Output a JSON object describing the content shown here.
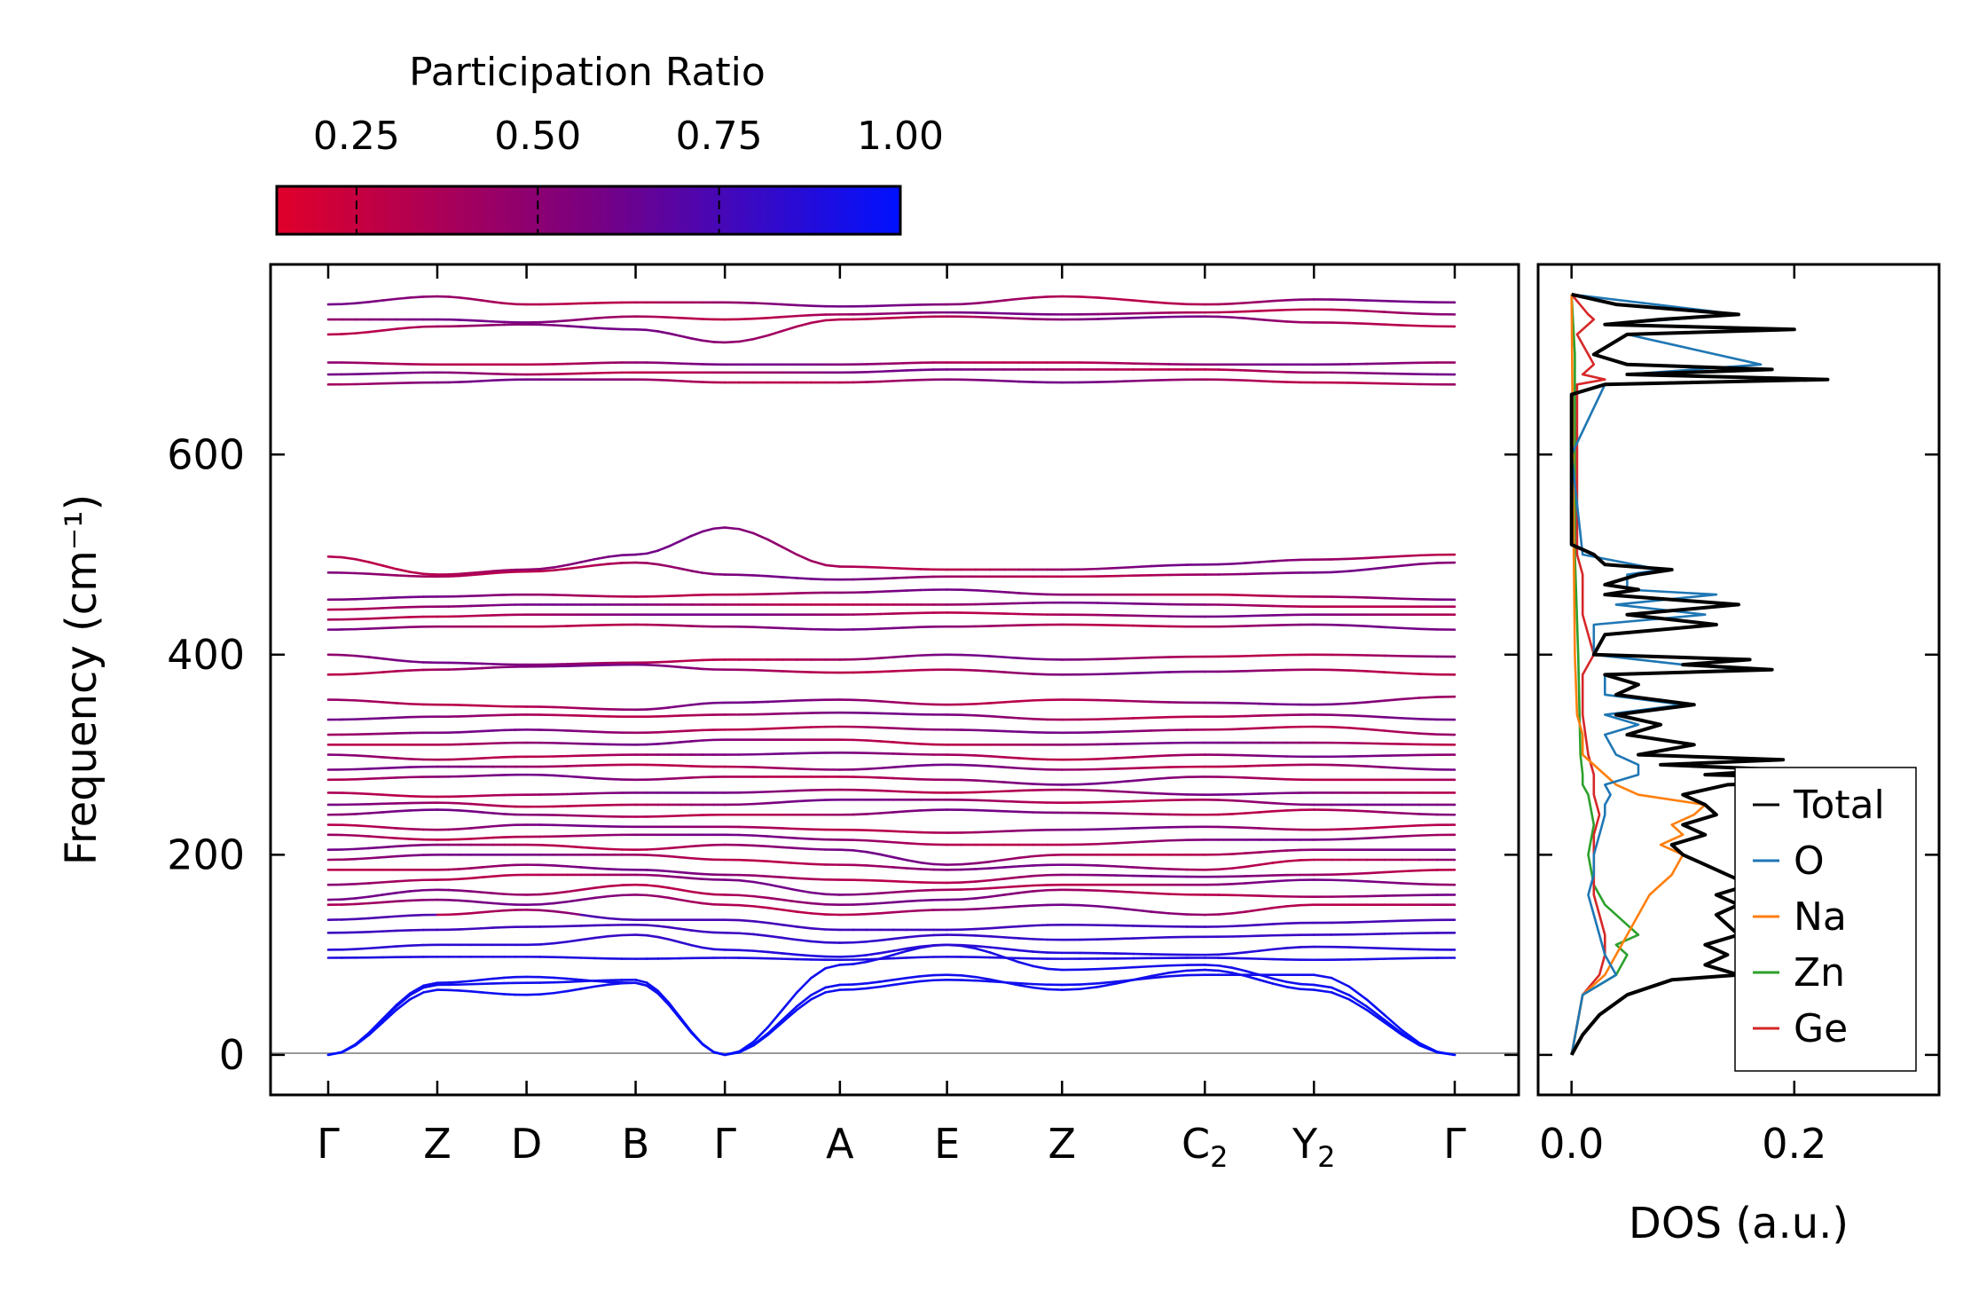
{
  "chart_data": {
    "type": "line",
    "colorbar": {
      "label": "Participation Ratio",
      "ticks": [
        "0.25",
        "0.50",
        "0.75",
        "1.00"
      ],
      "tick_values": [
        0.25,
        0.5,
        0.75,
        1.0
      ],
      "range": [
        0.14,
        1.0
      ],
      "color_low": "#e0002a",
      "color_mid": "#7a0080",
      "color_high": "#0011ff"
    },
    "band_plot": {
      "ylabel": "Frequency (cm⁻¹)",
      "ylim": [
        -40,
        790
      ],
      "yticks": [
        0,
        200,
        400,
        600
      ],
      "ytick_labels": [
        "0",
        "200",
        "400",
        "600"
      ],
      "kpoints": [
        "Γ",
        "Z",
        "D",
        "B",
        "Γ",
        "A",
        "E",
        "Z",
        "C₂",
        "Y₂",
        "Γ"
      ],
      "kpoint_positions": [
        0,
        0.55,
        1.0,
        1.55,
        2.0,
        2.58,
        3.12,
        3.7,
        4.42,
        4.97,
        5.68
      ],
      "segment_break_at": 2.0,
      "bands": [
        {
          "kind": "acoustic",
          "values": [
            0,
            70,
            72,
            75,
            0,
            90,
            110,
            85,
            90,
            70,
            0
          ]
        },
        {
          "kind": "acoustic",
          "values": [
            0,
            72,
            78,
            72,
            0,
            70,
            80,
            65,
            85,
            65,
            0
          ]
        },
        {
          "kind": "acoustic",
          "values": [
            0,
            65,
            60,
            72,
            0,
            65,
            75,
            70,
            80,
            80,
            0
          ]
        },
        {
          "kind": "optical",
          "values": [
            97,
            98,
            98,
            96,
            97,
            95,
            98,
            96,
            97,
            95,
            97
          ]
        },
        {
          "kind": "optical",
          "values": [
            105,
            110,
            110,
            120,
            105,
            98,
            110,
            102,
            100,
            108,
            105
          ]
        },
        {
          "kind": "optical",
          "values": [
            122,
            125,
            128,
            130,
            122,
            112,
            120,
            115,
            118,
            120,
            122
          ]
        },
        {
          "kind": "optical",
          "values": [
            135,
            140,
            145,
            135,
            135,
            125,
            125,
            130,
            128,
            132,
            135
          ]
        },
        {
          "kind": "optical",
          "values": [
            150,
            155,
            150,
            160,
            150,
            140,
            145,
            150,
            140,
            150,
            150
          ]
        },
        {
          "kind": "optical",
          "values": [
            155,
            165,
            160,
            170,
            160,
            150,
            155,
            165,
            160,
            158,
            160
          ]
        },
        {
          "kind": "optical",
          "values": [
            170,
            175,
            180,
            180,
            175,
            160,
            165,
            170,
            170,
            175,
            170
          ]
        },
        {
          "kind": "optical",
          "values": [
            185,
            185,
            190,
            185,
            180,
            175,
            172,
            180,
            178,
            180,
            185
          ]
        },
        {
          "kind": "optical",
          "values": [
            195,
            200,
            200,
            200,
            195,
            190,
            185,
            190,
            185,
            195,
            195
          ]
        },
        {
          "kind": "optical",
          "values": [
            205,
            210,
            210,
            205,
            210,
            205,
            190,
            200,
            200,
            205,
            205
          ]
        },
        {
          "kind": "optical",
          "values": [
            220,
            215,
            218,
            220,
            220,
            215,
            210,
            210,
            215,
            215,
            220
          ]
        },
        {
          "kind": "optical",
          "values": [
            230,
            225,
            230,
            228,
            228,
            225,
            222,
            225,
            228,
            225,
            230
          ]
        },
        {
          "kind": "optical",
          "values": [
            240,
            245,
            240,
            238,
            240,
            240,
            245,
            242,
            240,
            245,
            240
          ]
        },
        {
          "kind": "optical",
          "values": [
            250,
            252,
            248,
            250,
            250,
            255,
            255,
            252,
            255,
            250,
            250
          ]
        },
        {
          "kind": "optical",
          "values": [
            262,
            258,
            260,
            262,
            262,
            265,
            262,
            265,
            260,
            262,
            262
          ]
        },
        {
          "kind": "optical",
          "values": [
            275,
            278,
            280,
            275,
            278,
            278,
            275,
            270,
            278,
            275,
            275
          ]
        },
        {
          "kind": "optical",
          "values": [
            285,
            288,
            288,
            290,
            288,
            285,
            290,
            285,
            288,
            290,
            285
          ]
        },
        {
          "kind": "optical",
          "values": [
            300,
            295,
            298,
            300,
            300,
            302,
            300,
            295,
            300,
            298,
            300
          ]
        },
        {
          "kind": "optical",
          "values": [
            310,
            310,
            312,
            310,
            315,
            315,
            310,
            310,
            312,
            312,
            310
          ]
        },
        {
          "kind": "optical",
          "values": [
            320,
            322,
            325,
            322,
            325,
            328,
            325,
            322,
            325,
            328,
            320
          ]
        },
        {
          "kind": "optical",
          "values": [
            335,
            338,
            340,
            338,
            340,
            342,
            340,
            335,
            338,
            340,
            335
          ]
        },
        {
          "kind": "optical",
          "values": [
            355,
            350,
            348,
            345,
            352,
            355,
            350,
            355,
            352,
            350,
            358
          ]
        },
        {
          "kind": "optical",
          "values": [
            380,
            385,
            388,
            390,
            385,
            382,
            385,
            380,
            383,
            385,
            380
          ]
        },
        {
          "kind": "optical",
          "values": [
            400,
            392,
            390,
            392,
            395,
            395,
            400,
            395,
            398,
            400,
            398
          ]
        },
        {
          "kind": "optical",
          "values": [
            425,
            428,
            428,
            430,
            428,
            425,
            428,
            430,
            428,
            430,
            425
          ]
        },
        {
          "kind": "optical",
          "values": [
            435,
            438,
            440,
            440,
            440,
            440,
            442,
            440,
            438,
            440,
            440
          ]
        },
        {
          "kind": "optical",
          "values": [
            445,
            448,
            450,
            450,
            450,
            450,
            450,
            452,
            450,
            448,
            448
          ]
        },
        {
          "kind": "optical",
          "values": [
            455,
            458,
            460,
            458,
            460,
            462,
            465,
            460,
            460,
            458,
            455
          ]
        },
        {
          "kind": "optical",
          "values": [
            482,
            478,
            483,
            492,
            480,
            475,
            478,
            478,
            480,
            482,
            492
          ]
        },
        {
          "kind": "optical",
          "values": [
            498,
            480,
            485,
            500,
            527,
            488,
            485,
            485,
            490,
            495,
            500
          ]
        },
        {
          "kind": "optical",
          "values": [
            670,
            672,
            675,
            675,
            672,
            672,
            675,
            672,
            675,
            672,
            670
          ]
        },
        {
          "kind": "optical",
          "values": [
            680,
            682,
            680,
            682,
            682,
            682,
            685,
            685,
            685,
            682,
            680
          ]
        },
        {
          "kind": "optical",
          "values": [
            692,
            690,
            690,
            692,
            690,
            690,
            692,
            692,
            690,
            690,
            692
          ]
        },
        {
          "kind": "optical",
          "values": [
            720,
            728,
            730,
            725,
            712,
            735,
            738,
            735,
            738,
            732,
            728
          ]
        },
        {
          "kind": "optical",
          "values": [
            735,
            735,
            732,
            738,
            735,
            740,
            742,
            740,
            742,
            745,
            740
          ]
        },
        {
          "kind": "optical",
          "values": [
            750,
            758,
            750,
            752,
            752,
            748,
            750,
            758,
            750,
            755,
            752
          ]
        }
      ]
    },
    "dos_plot": {
      "xlabel": "DOS (a.u.)",
      "xlim": [
        -0.03,
        0.33
      ],
      "xticks": [
        0.0,
        0.2
      ],
      "xtick_labels": [
        "0.0",
        "0.2"
      ],
      "ylim": [
        -40,
        790
      ],
      "legend": [
        "Total",
        "O",
        "Na",
        "Zn",
        "Ge"
      ],
      "legend_location": "lower-right",
      "colors": {
        "Total": "#000000",
        "O": "#1f77b4",
        "Na": "#ff7f0e",
        "Zn": "#2ca02c",
        "Ge": "#d62728"
      },
      "series": [
        {
          "name": "Total",
          "freq": [
            0,
            10,
            20,
            40,
            60,
            75,
            80,
            90,
            100,
            110,
            120,
            130,
            140,
            150,
            160,
            170,
            180,
            190,
            200,
            210,
            220,
            230,
            240,
            250,
            260,
            270,
            275,
            280,
            285,
            290,
            295,
            300,
            310,
            320,
            330,
            340,
            350,
            360,
            370,
            380,
            385,
            390,
            395,
            400,
            420,
            430,
            440,
            450,
            460,
            465,
            470,
            480,
            485,
            490,
            500,
            510,
            540,
            600,
            660,
            670,
            675,
            680,
            685,
            690,
            700,
            720,
            725,
            730,
            735,
            740,
            750,
            760
          ],
          "dos": [
            0,
            0.005,
            0.01,
            0.025,
            0.05,
            0.09,
            0.15,
            0.12,
            0.14,
            0.12,
            0.15,
            0.14,
            0.13,
            0.15,
            0.13,
            0.16,
            0.14,
            0.12,
            0.1,
            0.09,
            0.12,
            0.1,
            0.13,
            0.12,
            0.1,
            0.14,
            0.3,
            0.12,
            0.19,
            0.08,
            0.19,
            0.06,
            0.11,
            0.05,
            0.08,
            0.04,
            0.11,
            0.04,
            0.06,
            0.03,
            0.18,
            0.1,
            0.16,
            0.02,
            0.03,
            0.13,
            0.05,
            0.15,
            0.03,
            0.06,
            0.03,
            0.06,
            0.09,
            0.03,
            0.02,
            0.0,
            0.0,
            0.0,
            0.0,
            0.03,
            0.23,
            0.05,
            0.18,
            0.05,
            0.02,
            0.05,
            0.2,
            0.03,
            0.08,
            0.15,
            0.04,
            0.0
          ]
        },
        {
          "name": "O",
          "freq": [
            0,
            60,
            80,
            100,
            120,
            140,
            160,
            180,
            200,
            220,
            240,
            250,
            260,
            270,
            280,
            290,
            300,
            320,
            330,
            340,
            350,
            360,
            380,
            385,
            390,
            400,
            430,
            440,
            450,
            460,
            465,
            480,
            485,
            500,
            600,
            670,
            675,
            680,
            690,
            720,
            725,
            730,
            740,
            760
          ],
          "dos": [
            0,
            0.01,
            0.04,
            0.03,
            0.025,
            0.02,
            0.015,
            0.02,
            0.02,
            0.025,
            0.03,
            0.03,
            0.035,
            0.03,
            0.06,
            0.06,
            0.04,
            0.03,
            0.06,
            0.03,
            0.1,
            0.03,
            0.03,
            0.16,
            0.1,
            0.02,
            0.02,
            0.12,
            0.04,
            0.13,
            0.05,
            0.05,
            0.08,
            0.01,
            0.0,
            0.03,
            0.22,
            0.05,
            0.17,
            0.05,
            0.2,
            0.03,
            0.15,
            0.0
          ]
        },
        {
          "name": "Na",
          "freq": [
            0,
            60,
            80,
            100,
            120,
            140,
            160,
            180,
            200,
            210,
            220,
            230,
            240,
            250,
            260,
            270,
            280,
            300,
            320,
            340,
            400,
            500,
            760
          ],
          "dos": [
            0,
            0.01,
            0.03,
            0.04,
            0.05,
            0.06,
            0.07,
            0.09,
            0.1,
            0.08,
            0.1,
            0.09,
            0.11,
            0.12,
            0.06,
            0.04,
            0.03,
            0.01,
            0.01,
            0.005,
            0.003,
            0.002,
            0.0
          ]
        },
        {
          "name": "Zn",
          "freq": [
            0,
            60,
            80,
            100,
            110,
            120,
            130,
            150,
            170,
            200,
            230,
            260,
            270,
            280,
            300,
            400,
            500,
            700,
            760
          ],
          "dos": [
            0,
            0.01,
            0.04,
            0.05,
            0.04,
            0.06,
            0.05,
            0.03,
            0.02,
            0.015,
            0.02,
            0.015,
            0.01,
            0.01,
            0.008,
            0.006,
            0.003,
            0.003,
            0.0
          ]
        },
        {
          "name": "Ge",
          "freq": [
            0,
            60,
            80,
            100,
            120,
            140,
            160,
            180,
            200,
            220,
            240,
            260,
            280,
            300,
            340,
            380,
            400,
            440,
            460,
            480,
            500,
            670,
            675,
            680,
            690,
            720,
            735,
            740,
            760
          ],
          "dos": [
            0,
            0.01,
            0.025,
            0.03,
            0.03,
            0.025,
            0.02,
            0.02,
            0.02,
            0.02,
            0.025,
            0.02,
            0.02,
            0.015,
            0.01,
            0.01,
            0.02,
            0.01,
            0.01,
            0.01,
            0.005,
            0.005,
            0.03,
            0.01,
            0.02,
            0.005,
            0.02,
            0.015,
            0.0
          ]
        }
      ]
    }
  }
}
